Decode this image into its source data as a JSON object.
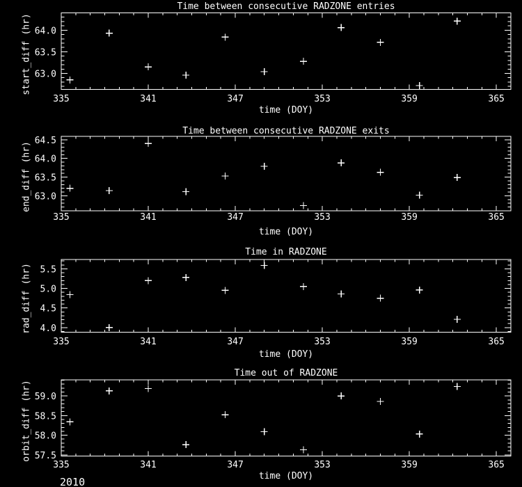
{
  "window": {
    "background": "#000000",
    "foreground": "#ffffff"
  },
  "footer": {
    "year": "2010"
  },
  "chart_data": [
    {
      "type": "scatter",
      "title": "Time between consecutive RADZONE entries",
      "xlabel": "time (DOY)",
      "ylabel": "start_diff (hr)",
      "marker": "plus",
      "grid": false,
      "legend": "none",
      "xlim": [
        335,
        366
      ],
      "xticks": [
        335,
        341,
        347,
        353,
        359,
        365
      ],
      "xtick_labels": [
        "335",
        "341",
        "347",
        "353",
        "359",
        "365"
      ],
      "x_minor_step": 1,
      "ylim": [
        62.63,
        64.4
      ],
      "yticks": [
        63.0,
        63.5,
        64.0
      ],
      "ytick_labels": [
        "63.0",
        "63.5",
        "64.0"
      ],
      "y_minor_step": 0.1,
      "x": [
        335.6,
        338.3,
        341.0,
        343.6,
        346.3,
        349.0,
        351.7,
        354.3,
        357.0,
        359.7,
        362.3
      ],
      "y": [
        62.85,
        63.93,
        63.15,
        62.96,
        63.84,
        63.04,
        63.28,
        64.06,
        63.72,
        62.72,
        64.21
      ]
    },
    {
      "type": "scatter",
      "title": "Time between consecutive RADZONE exits",
      "xlabel": "time (DOY)",
      "ylabel": "end_diff (hr)",
      "marker": "plus",
      "grid": false,
      "legend": "none",
      "xlim": [
        335,
        366
      ],
      "xticks": [
        335,
        341,
        347,
        353,
        359,
        365
      ],
      "xtick_labels": [
        "335",
        "341",
        "347",
        "353",
        "359",
        "365"
      ],
      "x_minor_step": 1,
      "ylim": [
        62.6,
        64.59
      ],
      "yticks": [
        63.0,
        63.5,
        64.0,
        64.5
      ],
      "ytick_labels": [
        "63.0",
        "63.5",
        "64.0",
        "64.5"
      ],
      "y_minor_step": 0.1,
      "x": [
        335.6,
        338.3,
        341.0,
        343.6,
        346.3,
        349.0,
        351.7,
        354.3,
        357.0,
        359.7,
        362.3
      ],
      "y": [
        63.2,
        63.14,
        64.4,
        63.11,
        63.53,
        63.79,
        62.74,
        63.88,
        63.63,
        63.02,
        63.49
      ]
    },
    {
      "type": "scatter",
      "title": "Time in RADZONE",
      "xlabel": "time (DOY)",
      "ylabel": "rad_diff (hr)",
      "marker": "plus",
      "grid": false,
      "legend": "none",
      "xlim": [
        335,
        366
      ],
      "xticks": [
        335,
        341,
        347,
        353,
        359,
        365
      ],
      "xtick_labels": [
        "335",
        "341",
        "347",
        "353",
        "359",
        "365"
      ],
      "x_minor_step": 1,
      "ylim": [
        3.88,
        5.74
      ],
      "yticks": [
        4.0,
        4.5,
        5.0,
        5.5
      ],
      "ytick_labels": [
        "4.0",
        "4.5",
        "5.0",
        "5.5"
      ],
      "y_minor_step": 0.1,
      "x": [
        335.6,
        338.3,
        341.0,
        343.6,
        346.3,
        349.0,
        351.7,
        354.3,
        357.0,
        359.7,
        362.3
      ],
      "y": [
        4.84,
        4.0,
        5.2,
        5.28,
        4.95,
        5.59,
        5.05,
        4.86,
        4.75,
        4.96,
        4.21
      ]
    },
    {
      "type": "scatter",
      "title": "Time out of RADZONE",
      "xlabel": "time (DOY)",
      "ylabel": "orbit_diff (hr)",
      "marker": "plus",
      "grid": false,
      "legend": "none",
      "xlim": [
        335,
        366
      ],
      "xticks": [
        335,
        341,
        347,
        353,
        359,
        365
      ],
      "xtick_labels": [
        "335",
        "341",
        "347",
        "353",
        "359",
        "365"
      ],
      "x_minor_step": 1,
      "ylim": [
        57.47,
        59.41
      ],
      "yticks": [
        57.5,
        58.0,
        58.5,
        59.0
      ],
      "ytick_labels": [
        "57.5",
        "58.0",
        "58.5",
        "59.0"
      ],
      "y_minor_step": 0.1,
      "x": [
        335.6,
        338.3,
        341.0,
        343.6,
        346.3,
        349.0,
        351.7,
        354.3,
        357.0,
        359.7,
        362.3
      ],
      "y": [
        58.34,
        59.13,
        59.19,
        57.76,
        58.52,
        58.09,
        57.63,
        59.0,
        58.86,
        58.03,
        59.24
      ]
    }
  ]
}
